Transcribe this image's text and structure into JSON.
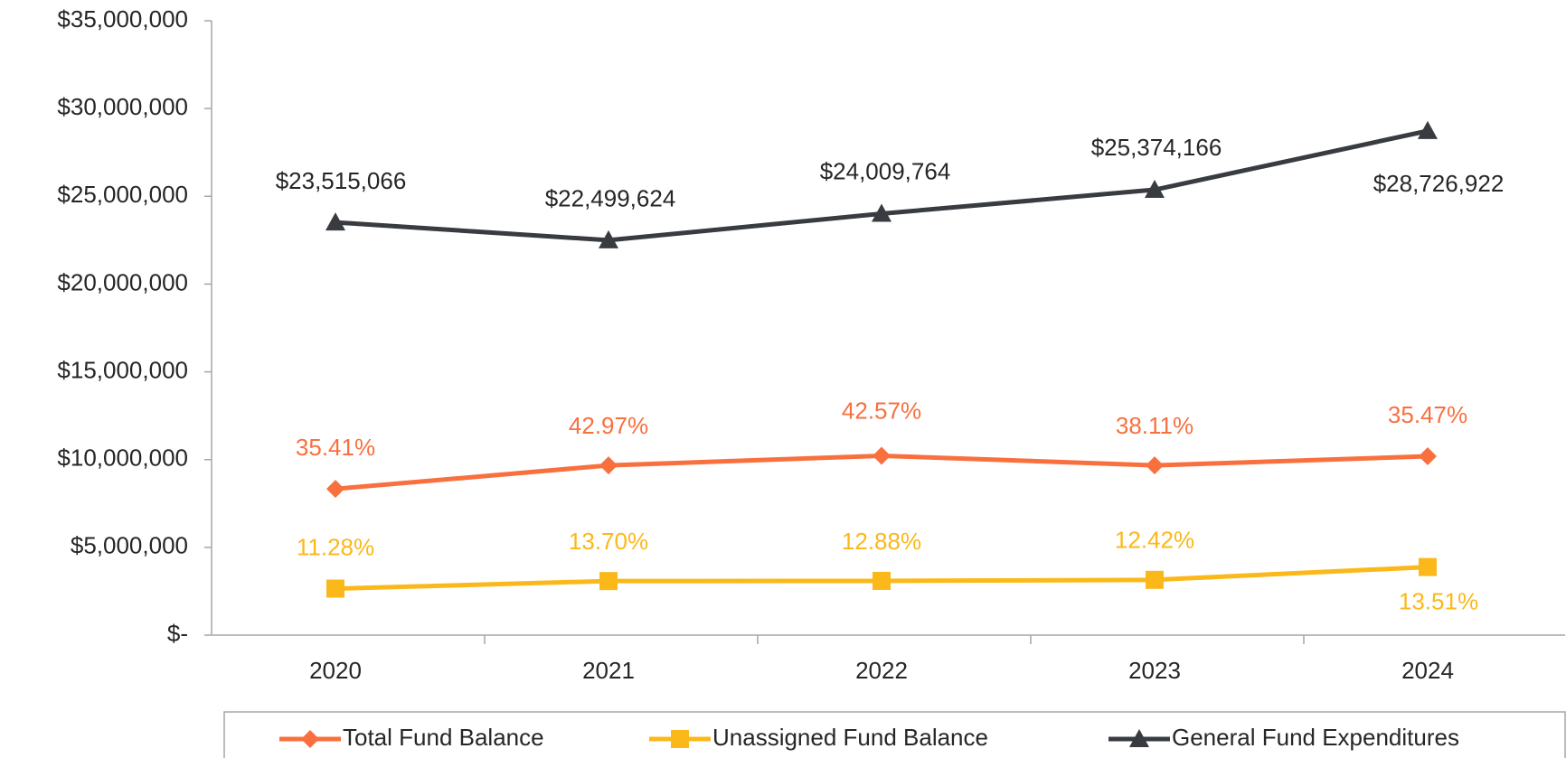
{
  "chart_data": {
    "type": "line",
    "categories": [
      "2020",
      "2021",
      "2022",
      "2023",
      "2024"
    ],
    "series": [
      {
        "name": "Total Fund Balance",
        "color": "#f9703f",
        "marker": "diamond",
        "values": [
          8330000,
          9670000,
          10220000,
          9670000,
          10190000
        ],
        "point_labels": [
          "35.41%",
          "42.97%",
          "42.57%",
          "38.11%",
          "35.47%"
        ]
      },
      {
        "name": "Unassigned Fund Balance",
        "color": "#fbb81a",
        "marker": "square",
        "values": [
          2650000,
          3080000,
          3090000,
          3150000,
          3880000
        ],
        "point_labels": [
          "11.28%",
          "13.70%",
          "12.88%",
          "12.42%",
          "13.51%"
        ]
      },
      {
        "name": "General Fund Expenditures",
        "color": "#383b40",
        "marker": "triangle",
        "values": [
          23515066,
          22499624,
          24009764,
          25374166,
          28726922
        ],
        "value_labels": [
          "$23,515,066",
          "$22,499,624",
          "$24,009,764",
          "$25,374,166",
          "$28,726,922"
        ]
      }
    ],
    "ylim": [
      0,
      35000000
    ],
    "yticks": [
      {
        "value": 0,
        "label": "$-"
      },
      {
        "value": 5000000,
        "label": "$5,000,000"
      },
      {
        "value": 10000000,
        "label": "$10,000,000"
      },
      {
        "value": 15000000,
        "label": "$15,000,000"
      },
      {
        "value": 20000000,
        "label": "$20,000,000"
      },
      {
        "value": 25000000,
        "label": "$25,000,000"
      },
      {
        "value": 30000000,
        "label": "$30,000,000"
      },
      {
        "value": 35000000,
        "label": "$35,000,000"
      }
    ],
    "grid": false,
    "legend": "bottom"
  }
}
